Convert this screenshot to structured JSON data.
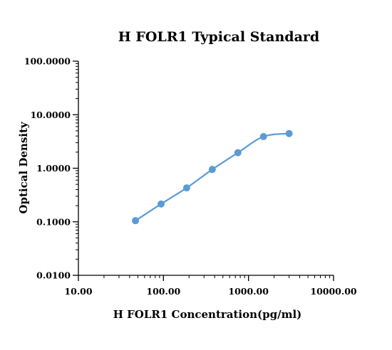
{
  "chart_data": {
    "type": "line",
    "title": "H FOLR1 Typical Standard",
    "xlabel": "H FOLR1 Concentration(pg/ml)",
    "ylabel": "Optical Density",
    "x_scale": "log",
    "y_scale": "log",
    "xlim": [
      10,
      10000
    ],
    "ylim": [
      0.01,
      100
    ],
    "x_ticks": [
      10,
      100,
      1000,
      10000
    ],
    "x_tick_labels": [
      "10.00",
      "100.00",
      "1000.00",
      "10000.00"
    ],
    "y_ticks": [
      0.01,
      0.1,
      1,
      10,
      100
    ],
    "y_tick_labels": [
      "0.0100",
      "0.1000",
      "1.0000",
      "10.0000",
      "100.0000"
    ],
    "grid": false,
    "legend": "none",
    "series": [
      {
        "color": "#5b9bd5",
        "x": [
          46.875,
          93.75,
          187.5,
          375,
          750,
          1500,
          3000
        ],
        "y": [
          0.105,
          0.215,
          0.43,
          0.95,
          1.95,
          3.9,
          4.45
        ]
      }
    ]
  }
}
